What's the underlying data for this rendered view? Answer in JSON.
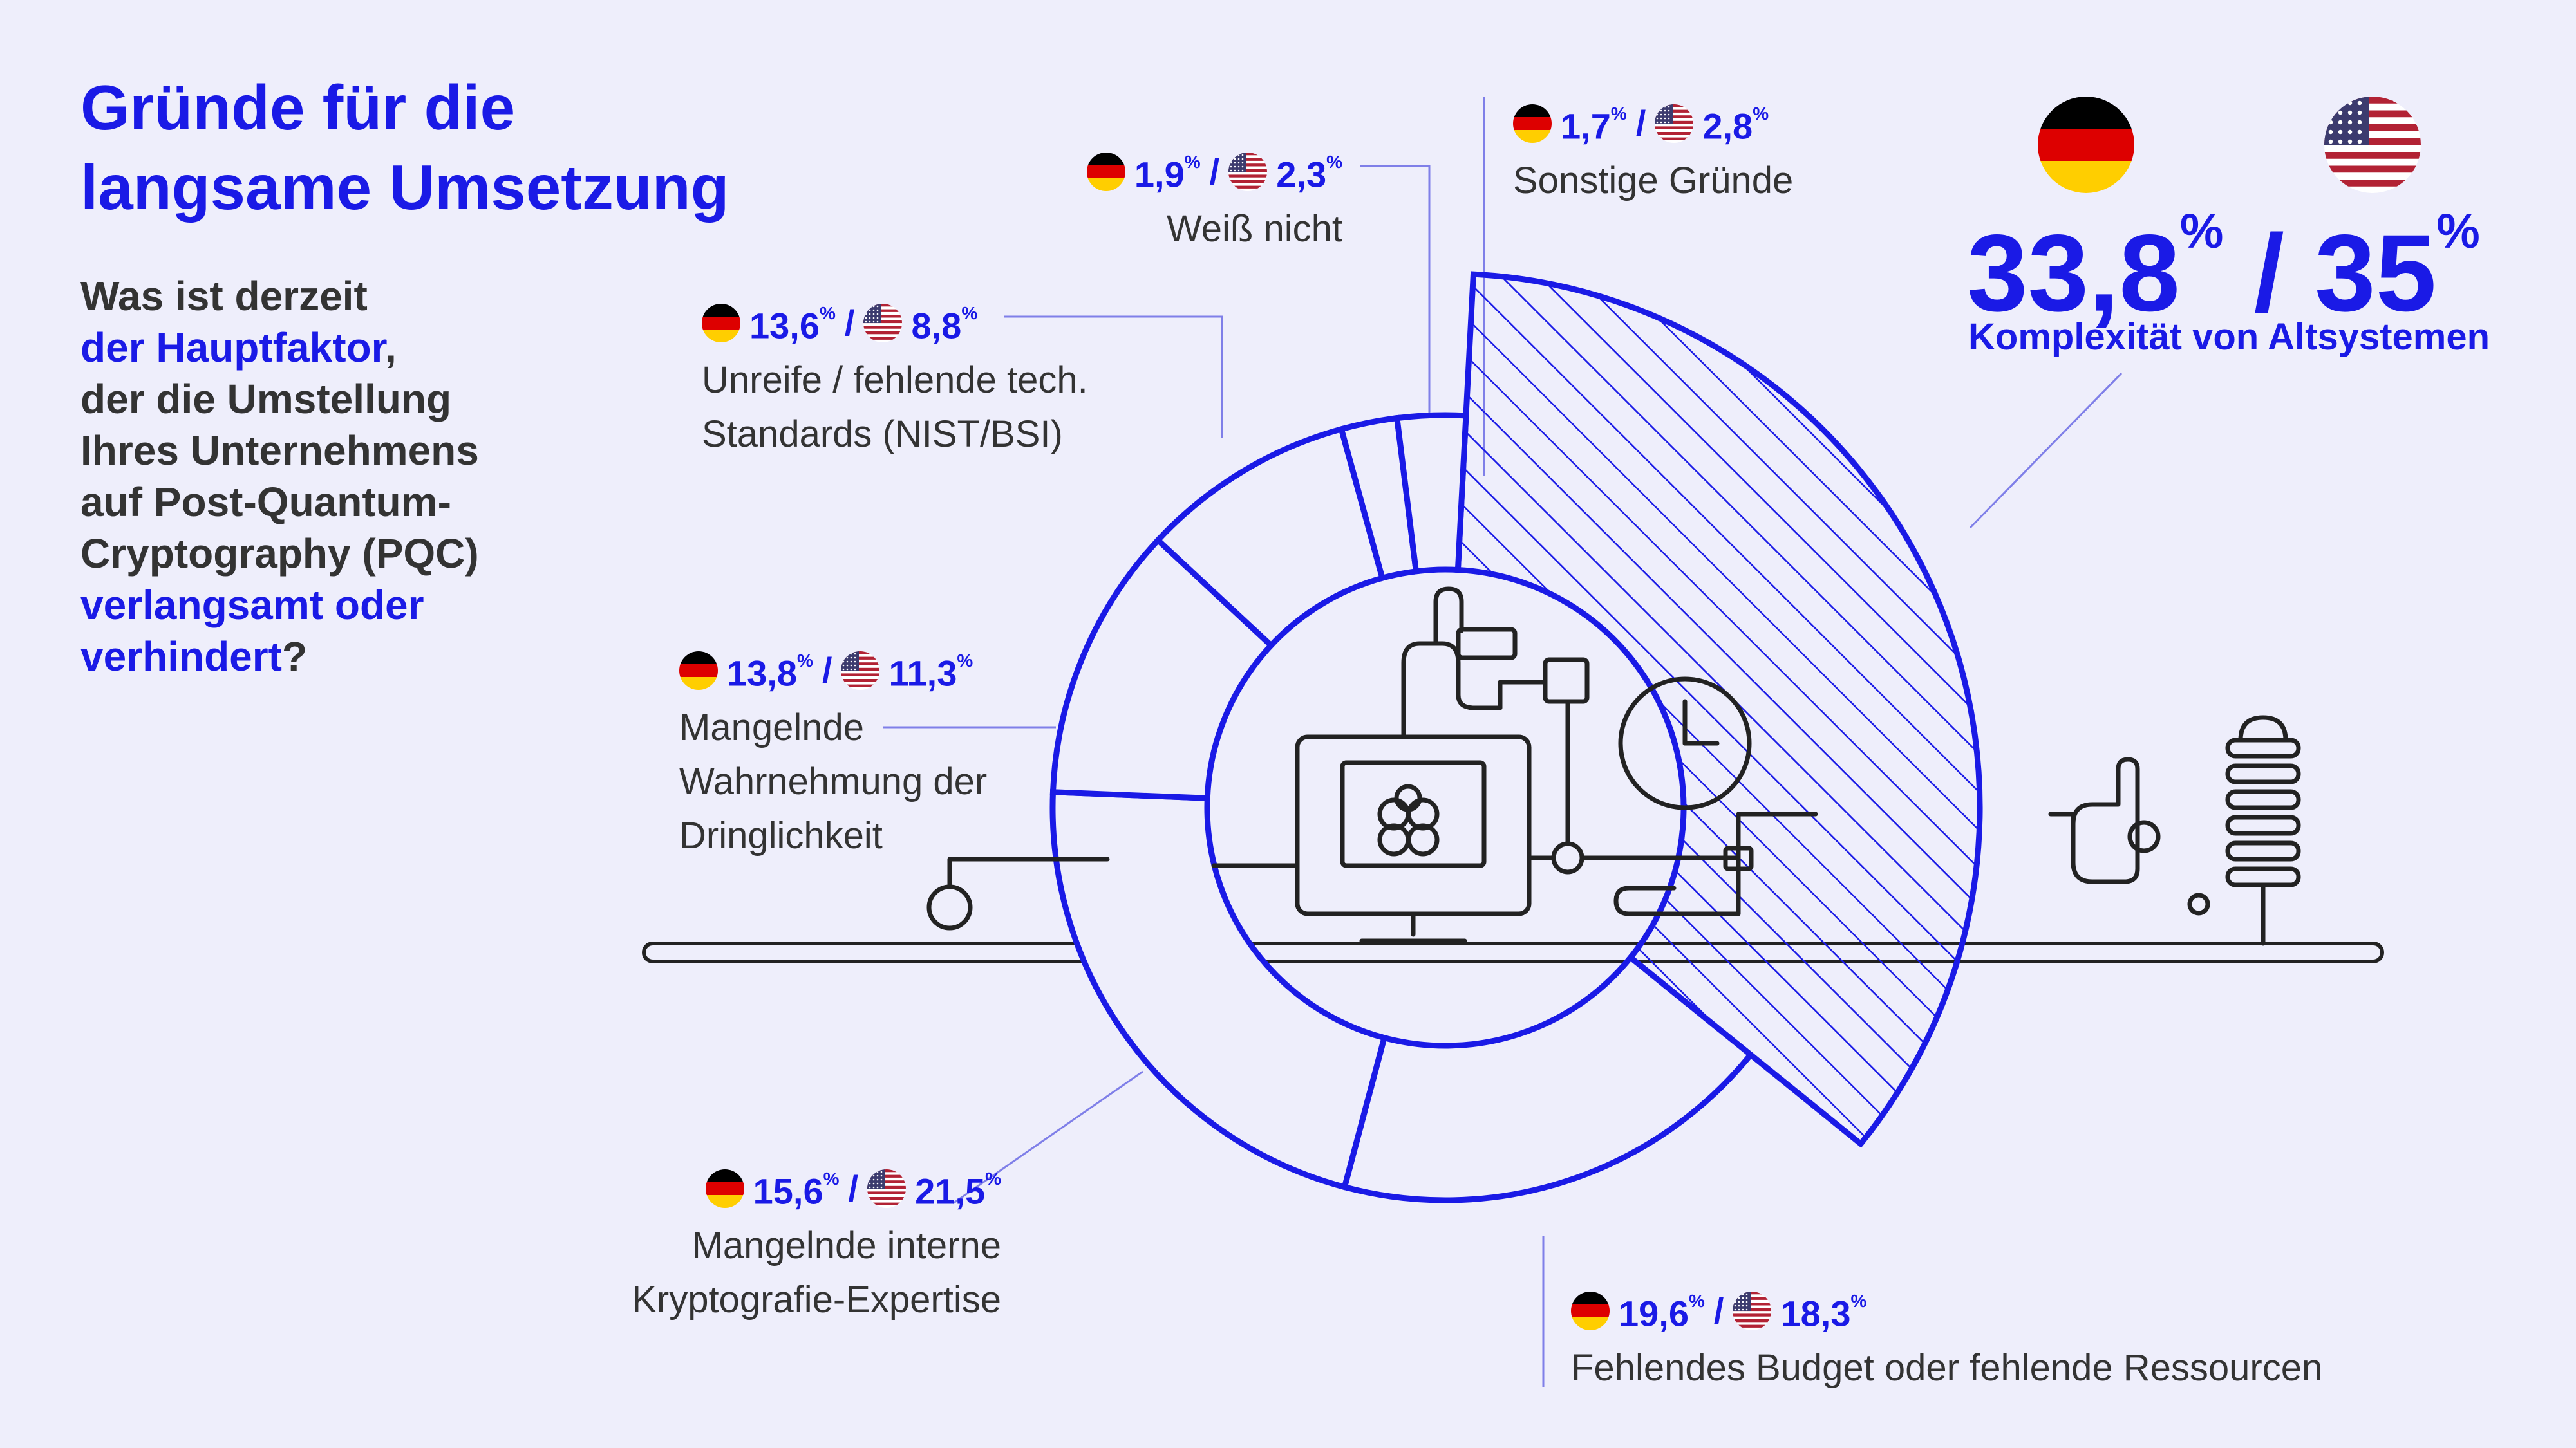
{
  "title": {
    "line1": "Gründe für die",
    "line2": "langsame Umsetzung"
  },
  "question": {
    "l1": "Was ist derzeit",
    "l2_blue": "der Hauptfaktor",
    "l2_tail": ",",
    "l3": "der die Umstellung",
    "l4": "Ihres Unternehmens",
    "l5": "auf Post-Quantum-",
    "l6": "Cryptography (PQC)",
    "l7_blue": "verlangsamt oder",
    "l8_blue": "verhindert",
    "l8_tail": "?"
  },
  "colors": {
    "accent": "#1A1AE6",
    "background": "#EEEEFB",
    "text": "#333333"
  },
  "icons": {
    "de": "germany-flag-icon",
    "us": "usa-flag-icon"
  },
  "chart_data": {
    "type": "pie",
    "variant": "donut",
    "series": [
      {
        "name": "DE",
        "values": [
          33.8,
          19.6,
          15.6,
          13.8,
          13.6,
          1.9,
          1.7
        ]
      },
      {
        "name": "US",
        "values": [
          35,
          18.3,
          21.5,
          11.3,
          8.8,
          2.3,
          2.8
        ]
      }
    ],
    "categories": [
      "Komplexität von Altsystemen",
      "Fehlendes Budget oder fehlende Ressourcen",
      "Mangelnde interne Kryptografie-Expertise",
      "Mangelnde Wahrnehmung der Dringlichkeit",
      "Unreife / fehlende tech. Standards (NIST/BSI)",
      "Weiß nicht",
      "Sonstige Gründe"
    ],
    "highlighted_category": "Komplexität von Altsystemen",
    "labels": [
      {
        "de": "33,8",
        "us": "35",
        "lines": [
          "Komplexität von Altsystemen"
        ]
      },
      {
        "de": "19,6",
        "us": "18,3",
        "lines": [
          "Fehlendes Budget oder fehlende Ressourcen"
        ]
      },
      {
        "de": "15,6",
        "us": "21,5",
        "lines": [
          "Mangelnde interne",
          "Kryptografie-Expertise"
        ]
      },
      {
        "de": "13,8",
        "us": "11,3",
        "lines": [
          "Mangelnde",
          "Wahrnehmung der",
          "Dringlichkeit"
        ]
      },
      {
        "de": "13,6",
        "us": "8,8",
        "lines": [
          "Unreife / fehlende tech.",
          "Standards (NIST/BSI)"
        ]
      },
      {
        "de": "1,9",
        "us": "2,3",
        "lines": [
          "Weiß nicht"
        ]
      },
      {
        "de": "1,7",
        "us": "2,8",
        "lines": [
          "Sonstige Gründe"
        ]
      }
    ],
    "percent_sign": "%",
    "slash": "/"
  }
}
